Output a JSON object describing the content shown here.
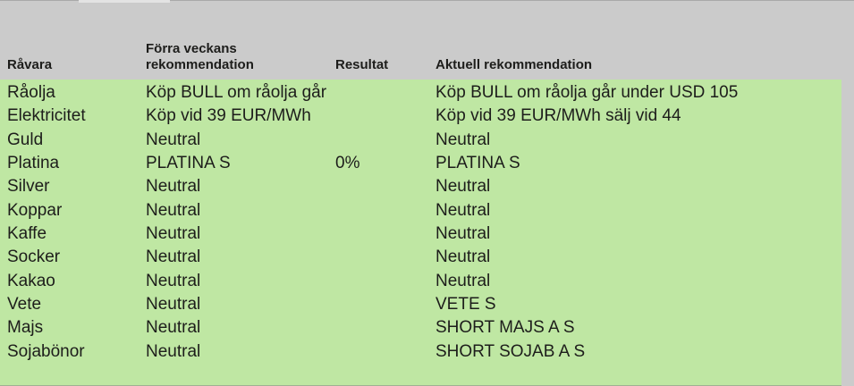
{
  "colors": {
    "header_bg": "#cbcbcb",
    "body_bg": "#bfe7a3",
    "text": "#1d1d1b",
    "top_line": "#a9a9a9",
    "bottom_line": "#9fb193"
  },
  "table": {
    "columns": [
      {
        "label": "Råvara"
      },
      {
        "label": "Förra veckans rekommendation"
      },
      {
        "label": "Resultat"
      },
      {
        "label": "Aktuell rekommendation"
      }
    ],
    "rows": [
      {
        "ravara": "Råolja",
        "forra": "Köp BULL om råolja går",
        "resultat": "",
        "aktuell": "Köp BULL om råolja går under USD 105"
      },
      {
        "ravara": "Elektricitet",
        "forra": "Köp vid 39 EUR/MWh",
        "resultat": "",
        "aktuell": "Köp vid 39 EUR/MWh sälj vid 44"
      },
      {
        "ravara": "Guld",
        "forra": "Neutral",
        "resultat": "",
        "aktuell": "Neutral"
      },
      {
        "ravara": "Platina",
        "forra": "PLATINA S",
        "resultat": "0%",
        "aktuell": "PLATINA S"
      },
      {
        "ravara": "Silver",
        "forra": "Neutral",
        "resultat": "",
        "aktuell": "Neutral"
      },
      {
        "ravara": "Koppar",
        "forra": "Neutral",
        "resultat": "",
        "aktuell": "Neutral"
      },
      {
        "ravara": "Kaffe",
        "forra": "Neutral",
        "resultat": "",
        "aktuell": "Neutral"
      },
      {
        "ravara": "Socker",
        "forra": "Neutral",
        "resultat": "",
        "aktuell": "Neutral"
      },
      {
        "ravara": "Kakao",
        "forra": "Neutral",
        "resultat": "",
        "aktuell": "Neutral"
      },
      {
        "ravara": "Vete",
        "forra": "Neutral",
        "resultat": "",
        "aktuell": "VETE S"
      },
      {
        "ravara": "Majs",
        "forra": "Neutral",
        "resultat": "",
        "aktuell": "SHORT MAJS A S"
      },
      {
        "ravara": "Sojabönor",
        "forra": "Neutral",
        "resultat": "",
        "aktuell": "SHORT SOJAB A S"
      }
    ]
  }
}
